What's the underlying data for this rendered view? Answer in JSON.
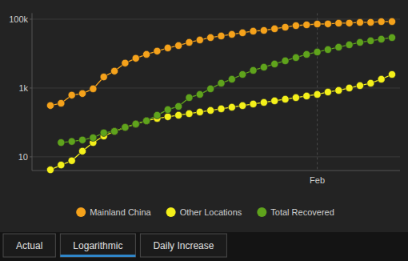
{
  "chart_data": {
    "type": "line",
    "log": "y",
    "grid": true,
    "legend": "bottom",
    "marker": "circle",
    "ylim": [
      4,
      150000
    ],
    "yticks": [
      10,
      {
        "value": 1000,
        "label": "1k"
      },
      {
        "value": 100000,
        "label": "100k"
      }
    ],
    "categories": [
      null,
      null,
      null,
      null,
      null,
      null,
      null,
      null,
      null,
      null,
      null,
      null,
      null,
      null,
      null,
      null,
      null,
      null,
      null,
      null,
      null,
      null,
      null,
      null,
      null,
      "Feb",
      null,
      null,
      null,
      null,
      null,
      null,
      null
    ],
    "series": [
      {
        "name": "Mainland China",
        "color": "#f5a21b",
        "values": [
          310,
          360,
          620,
          690,
          950,
          2100,
          3100,
          5300,
          7300,
          9500,
          11800,
          14600,
          17100,
          21200,
          24900,
          29200,
          32500,
          36200,
          40300,
          44800,
          47200,
          52600,
          58500,
          65100,
          68700,
          72400,
          73000,
          76500,
          77000,
          80700,
          81000,
          85100,
          85500
        ]
      },
      {
        "name": "Other Locations",
        "color": "#f4f01a",
        "values": [
          4.2,
          5.8,
          7.7,
          14.6,
          26,
          40,
          55,
          72,
          90,
          111,
          131,
          146,
          162,
          180,
          201,
          223,
          249,
          277,
          308,
          343,
          381,
          425,
          472,
          526,
          585,
          651,
          765,
          852,
          1000,
          1174,
          1380,
          1800,
          2480
        ]
      },
      {
        "name": "Total Recovered",
        "color": "#5fa31c",
        "values": [
          null,
          26,
          28,
          31,
          36,
          50,
          55,
          72,
          90,
          111,
          162,
          236,
          292,
          526,
          651,
          949,
          1380,
          1800,
          2480,
          3250,
          4030,
          4990,
          6180,
          7650,
          9480,
          11140,
          13070,
          15350,
          18030,
          21180,
          23550,
          26240,
          29180
        ]
      }
    ]
  },
  "tabs": [
    "Actual",
    "Logarithmic",
    "Daily Increase"
  ],
  "active_tab": "Logarithmic"
}
